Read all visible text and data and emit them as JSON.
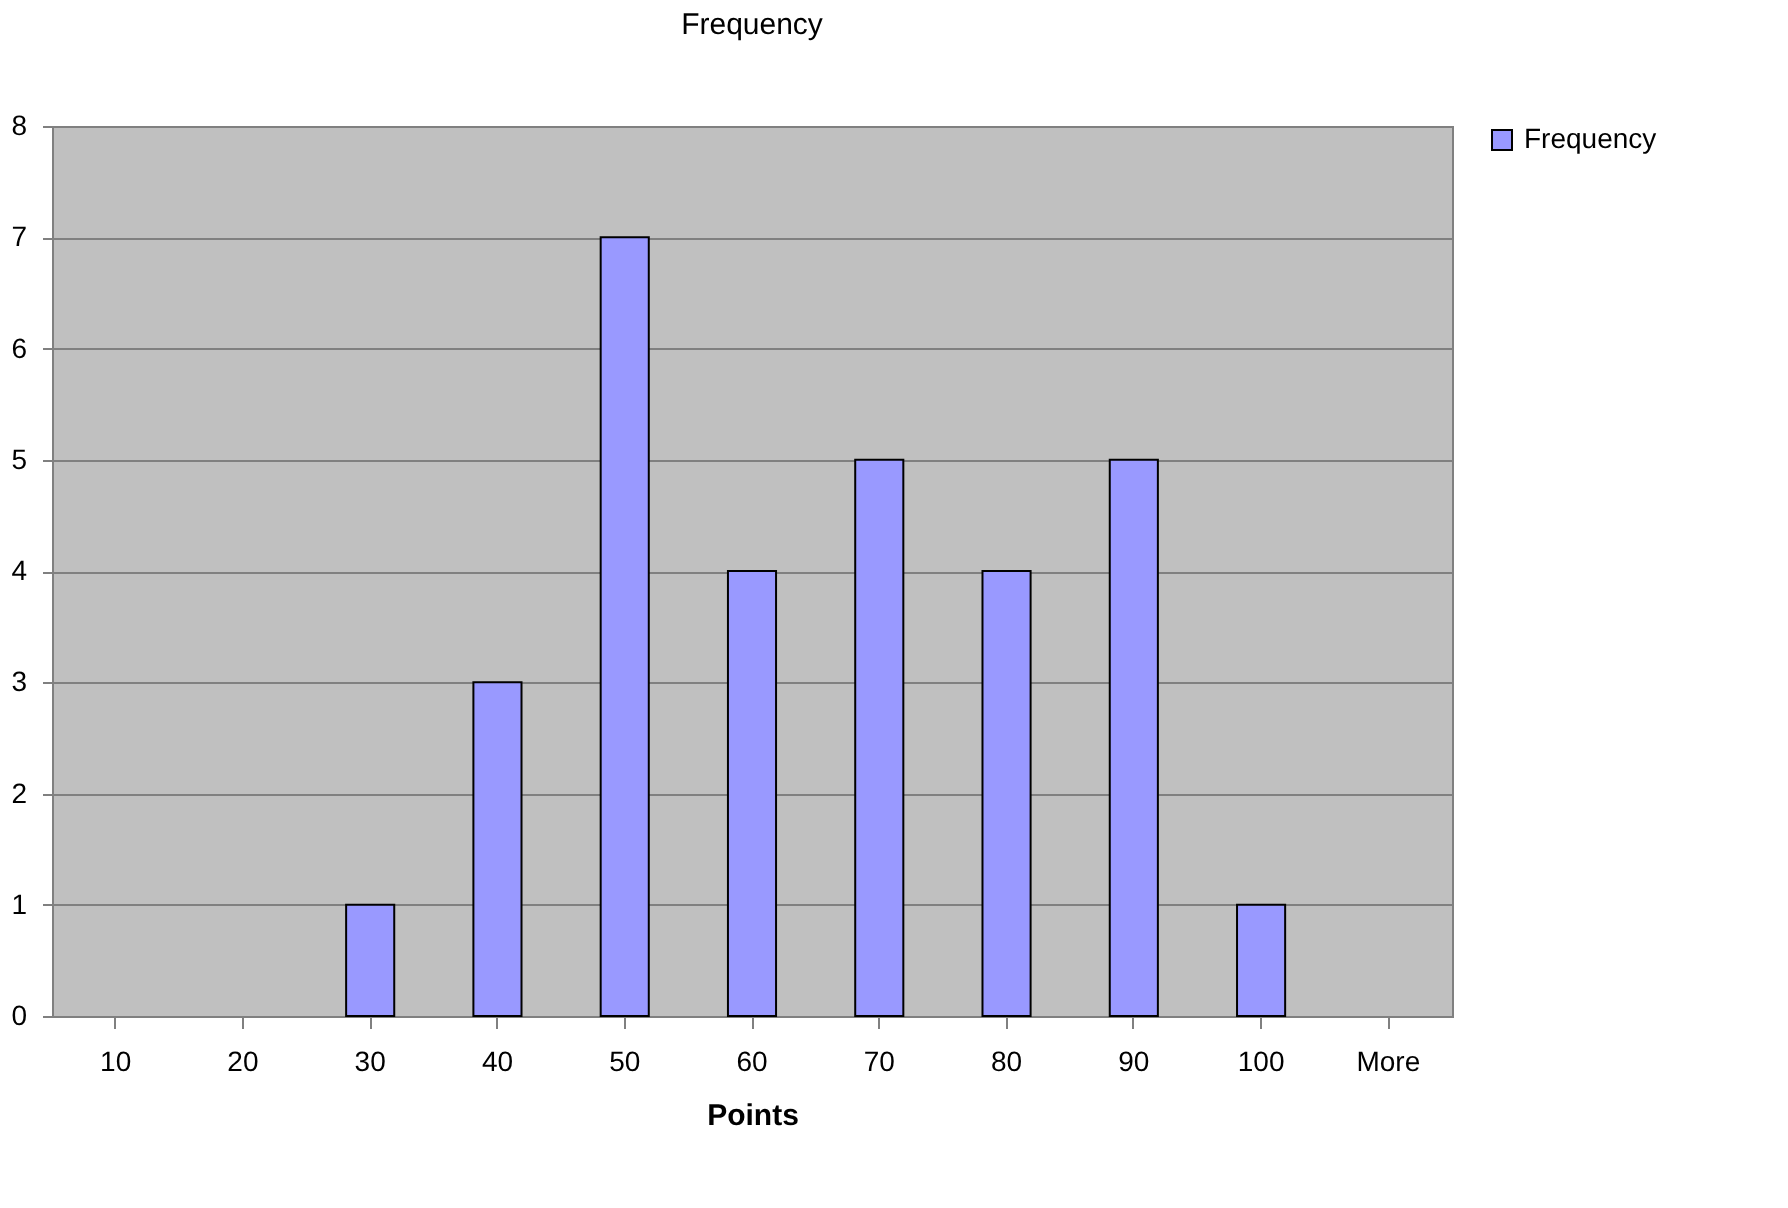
{
  "chart_data": {
    "type": "bar",
    "title": "Frequency",
    "xlabel": "Points",
    "categories": [
      "10",
      "20",
      "30",
      "40",
      "50",
      "60",
      "70",
      "80",
      "90",
      "100",
      "More"
    ],
    "series": [
      {
        "name": "Frequency",
        "color": "#9999ff",
        "values": [
          0,
          0,
          1,
          3,
          7,
          4,
          5,
          4,
          5,
          1,
          0
        ]
      }
    ],
    "ylim": [
      0,
      8
    ],
    "yticks": [
      0,
      1,
      2,
      3,
      4,
      5,
      6,
      7,
      8
    ],
    "grid": "y",
    "legend": "right"
  }
}
